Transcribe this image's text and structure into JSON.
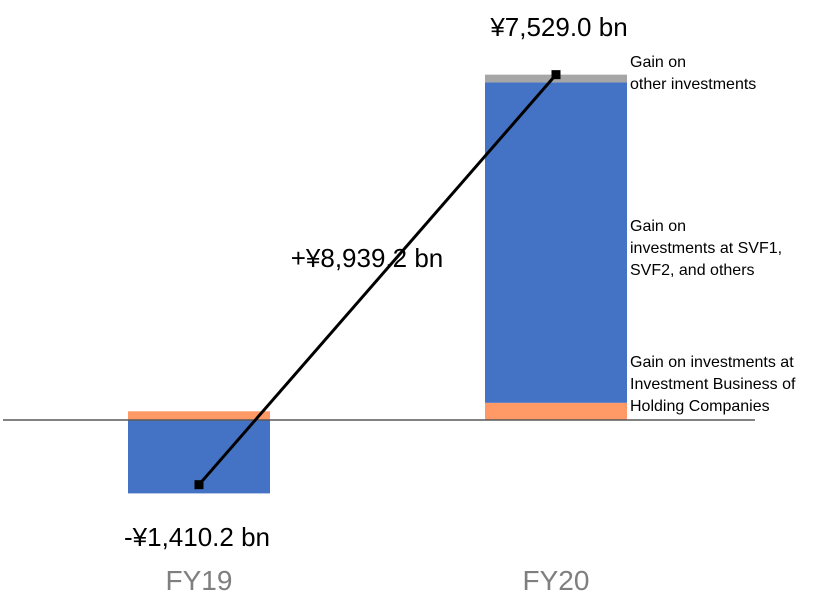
{
  "chart_data": {
    "type": "bar",
    "stacked": true,
    "categories": [
      "FY19",
      "FY20"
    ],
    "unit": "¥ bn",
    "series": [
      {
        "key": "holding",
        "color": "#ff9966",
        "values": [
          190,
          375
        ]
      },
      {
        "key": "svf",
        "color": "#4472c4",
        "values": [
          -1600,
          6984
        ]
      },
      {
        "key": "other",
        "color": "#a6a6a6",
        "values": [
          0,
          170
        ]
      }
    ],
    "segment_labels": [
      {
        "series": "other",
        "lines": [
          "Gain on",
          "other investments"
        ]
      },
      {
        "series": "svf",
        "lines": [
          "Gain on",
          "investments at SVF1,",
          "SVF2, and others"
        ]
      },
      {
        "series": "holding",
        "lines": [
          "Gain on investments at",
          "Investment Business of",
          "Holding Companies"
        ]
      }
    ],
    "totals": [
      {
        "category": "FY19",
        "value": -1410.2,
        "label": "-¥1,410.2 bn"
      },
      {
        "category": "FY20",
        "value": 7529.0,
        "label": "¥7,529.0 bn"
      }
    ],
    "difference": {
      "value": 8939.2,
      "label": "+¥8,939.2 bn"
    },
    "ylim": [
      -2100,
      8800
    ]
  }
}
